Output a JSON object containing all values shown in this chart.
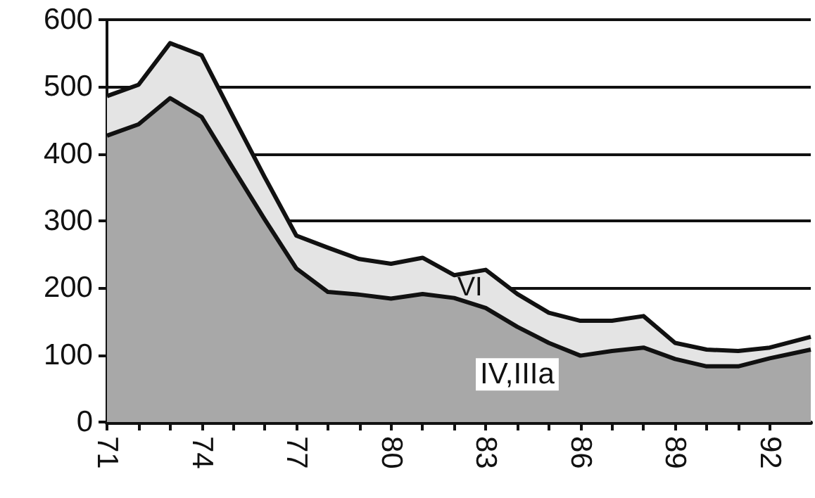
{
  "chart_data": {
    "type": "area",
    "stacked": true,
    "x": [
      71,
      72,
      73,
      74,
      75,
      76,
      77,
      78,
      79,
      80,
      81,
      82,
      83,
      84,
      85,
      86,
      87,
      88,
      89,
      90,
      91,
      92,
      93.3
    ],
    "series": [
      {
        "name": "IV,IIIa",
        "color": "#a8a8a8",
        "values": [
          427,
          444,
          483,
          455,
          378,
          302,
          229,
          194,
          190,
          184,
          191,
          185,
          170,
          142,
          118,
          99,
          106,
          111,
          94,
          83,
          83,
          95,
          108
        ]
      },
      {
        "name": "VI",
        "color": "#e4e4e4",
        "values": [
          59,
          59,
          82,
          92,
          77,
          63,
          49,
          66,
          53,
          52,
          54,
          34,
          57,
          49,
          45,
          52,
          45,
          47,
          24,
          25,
          23,
          16,
          19
        ]
      }
    ],
    "xlim": [
      71,
      93.3
    ],
    "xticks": [
      71,
      {
        "value": 72,
        "label": null
      },
      {
        "value": 73,
        "label": null
      },
      74,
      {
        "value": 75,
        "label": null
      },
      {
        "value": 76,
        "label": null
      },
      77,
      {
        "value": 78,
        "label": null
      },
      {
        "value": 79,
        "label": null
      },
      80,
      {
        "value": 81,
        "label": null
      },
      {
        "value": 82,
        "label": null
      },
      83,
      {
        "value": 84,
        "label": null
      },
      {
        "value": 85,
        "label": null
      },
      86,
      {
        "value": 87,
        "label": null
      },
      {
        "value": 88,
        "label": null
      },
      89,
      {
        "value": 90,
        "label": null
      },
      {
        "value": 91,
        "label": null
      },
      92
    ],
    "ylim": [
      0,
      600
    ],
    "yticks": [
      0,
      100,
      200,
      300,
      400,
      500,
      600
    ],
    "grid": "y",
    "legend": false,
    "marker": "none",
    "line_style": "solid"
  }
}
